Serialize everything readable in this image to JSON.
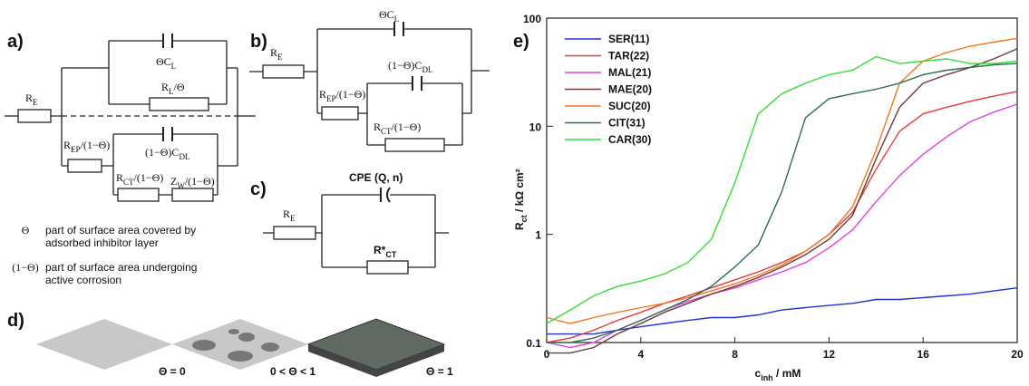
{
  "panels": {
    "a": {
      "tag": "a)",
      "re": [
        "R",
        "E"
      ],
      "cl": [
        "ΘC",
        "L"
      ],
      "rl": [
        "R",
        "L",
        "/Θ"
      ],
      "rep": [
        "R",
        "EP",
        "/(1−Θ)"
      ],
      "cdl": [
        "(1−Θ)C",
        "DL"
      ],
      "rct": [
        "R",
        "CT",
        "/(1−Θ)"
      ],
      "zw": [
        "Z",
        "W",
        "/(1−Θ)"
      ],
      "notes": [
        {
          "symbol": "Θ",
          "line1": "part of surface area covered by",
          "line2": "adsorbed inhibitor layer"
        },
        {
          "symbol": "(1−Θ)",
          "line1": "part of surface area undergoing",
          "line2": "active corrosion"
        }
      ]
    },
    "b": {
      "tag": "b)",
      "re": [
        "R",
        "E"
      ],
      "cl": [
        "ΘC",
        "L"
      ],
      "rep": [
        "R",
        "EP",
        "/(1−Θ)"
      ],
      "cdl": [
        "(1−Θ)C",
        "DL"
      ],
      "rct": [
        "R",
        "CT",
        "/(1−Θ)"
      ]
    },
    "c": {
      "tag": "c)",
      "cpe": "CPE (Q, n)",
      "re": [
        "R",
        "E"
      ],
      "rct": [
        "R*",
        "CT"
      ]
    },
    "d": {
      "tag": "d)",
      "labels": [
        "Θ = 0",
        "0 < Θ < 1",
        "Θ = 1"
      ]
    },
    "e": {
      "tag": "e)"
    }
  },
  "chart_data": {
    "type": "line",
    "xlabel": [
      "c",
      "inh",
      " / mM"
    ],
    "ylabel": [
      "R",
      "ct",
      " / kΩ cm²"
    ],
    "x": [
      0,
      1,
      2,
      3,
      4,
      5,
      6,
      7,
      8,
      9,
      10,
      11,
      12,
      13,
      14,
      15,
      16,
      17,
      18,
      19,
      20
    ],
    "xlim": [
      0,
      20
    ],
    "xticks": [
      0,
      4,
      8,
      12,
      16,
      20
    ],
    "ylim": [
      0.1,
      100
    ],
    "yticks": [
      0.1,
      1,
      10,
      100
    ],
    "log_y": true,
    "legend": "top-left",
    "series": [
      {
        "name": "SER(11)",
        "color": "#2233cc",
        "values": [
          0.12,
          0.12,
          0.12,
          0.13,
          0.14,
          0.15,
          0.16,
          0.17,
          0.17,
          0.18,
          0.2,
          0.21,
          0.22,
          0.23,
          0.25,
          0.25,
          0.26,
          0.27,
          0.28,
          0.3,
          0.32
        ]
      },
      {
        "name": "TAR(22)",
        "color": "#e83a3a",
        "values": [
          0.1,
          0.11,
          0.13,
          0.16,
          0.19,
          0.23,
          0.27,
          0.32,
          0.38,
          0.45,
          0.55,
          0.7,
          1.0,
          1.6,
          4,
          9,
          13,
          15,
          17,
          19,
          21
        ]
      },
      {
        "name": "MAL(21)",
        "color": "#e040e0",
        "values": [
          0.1,
          0.09,
          0.1,
          0.13,
          0.16,
          0.2,
          0.24,
          0.28,
          0.32,
          0.38,
          0.45,
          0.55,
          0.75,
          1.1,
          2,
          3.5,
          5.5,
          8,
          11,
          13.5,
          16
        ]
      },
      {
        "name": "MAE(20)",
        "color": "#6b3a3a",
        "values": [
          0.08,
          0.08,
          0.09,
          0.12,
          0.15,
          0.19,
          0.23,
          0.28,
          0.33,
          0.4,
          0.5,
          0.65,
          0.9,
          1.5,
          5,
          15,
          25,
          30,
          35,
          42,
          52
        ]
      },
      {
        "name": "SUC(20)",
        "color": "#f07820",
        "values": [
          0.17,
          0.15,
          0.17,
          0.19,
          0.21,
          0.23,
          0.26,
          0.3,
          0.35,
          0.42,
          0.52,
          0.7,
          1.0,
          1.8,
          6,
          25,
          40,
          48,
          55,
          60,
          65
        ]
      },
      {
        "name": "CIT(31)",
        "color": "#2e6e50",
        "values": [
          0.1,
          0.1,
          0.11,
          0.13,
          0.16,
          0.2,
          0.25,
          0.33,
          0.5,
          0.8,
          2.5,
          12,
          18,
          20,
          22,
          25,
          30,
          33,
          35,
          37,
          38
        ]
      },
      {
        "name": "CAR(30)",
        "color": "#33dd33",
        "values": [
          0.15,
          0.2,
          0.27,
          0.33,
          0.37,
          0.43,
          0.55,
          0.9,
          3,
          13,
          20,
          25,
          30,
          33,
          44,
          38,
          40,
          42,
          38,
          38,
          40
        ]
      }
    ]
  }
}
